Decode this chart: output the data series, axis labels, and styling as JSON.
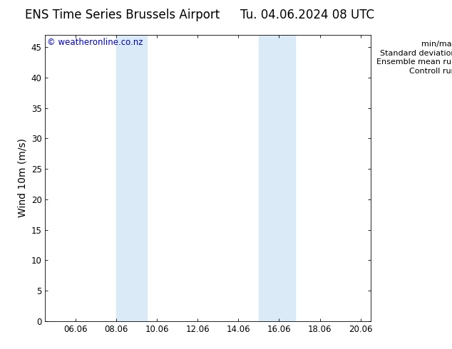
{
  "title_left": "ENS Time Series Brussels Airport",
  "title_right": "Tu. 04.06.2024 08 UTC",
  "ylabel": "Wind 10m (m/s)",
  "watermark": "© weatheronline.co.nz",
  "xlim_start": 4.5,
  "xlim_end": 20.5,
  "ylim_bottom": 0,
  "ylim_top": 47,
  "yticks": [
    0,
    5,
    10,
    15,
    20,
    25,
    30,
    35,
    40,
    45
  ],
  "xtick_labels": [
    "06.06",
    "08.06",
    "10.06",
    "12.06",
    "14.06",
    "16.06",
    "18.06",
    "20.06"
  ],
  "xtick_positions": [
    6,
    8,
    10,
    12,
    14,
    16,
    18,
    20
  ],
  "shaded_bands": [
    {
      "x_start": 8.0,
      "x_end": 9.5
    },
    {
      "x_start": 15.0,
      "x_end": 16.8
    }
  ],
  "shaded_color": "#daeaf7",
  "background_color": "#ffffff",
  "legend_items": [
    {
      "label": "min/max",
      "color": "#aaaaaa",
      "lw": 1.2
    },
    {
      "label": "Standard deviation",
      "color": "#c8dced",
      "lw": 5
    },
    {
      "label": "Ensemble mean run",
      "color": "#dd0000",
      "lw": 1.2
    },
    {
      "label": "Controll run",
      "color": "#006400",
      "lw": 1.2
    }
  ],
  "title_fontsize": 12,
  "tick_fontsize": 8.5,
  "ylabel_fontsize": 10,
  "watermark_color": "#0000bb",
  "watermark_fontsize": 8.5,
  "legend_fontsize": 8
}
